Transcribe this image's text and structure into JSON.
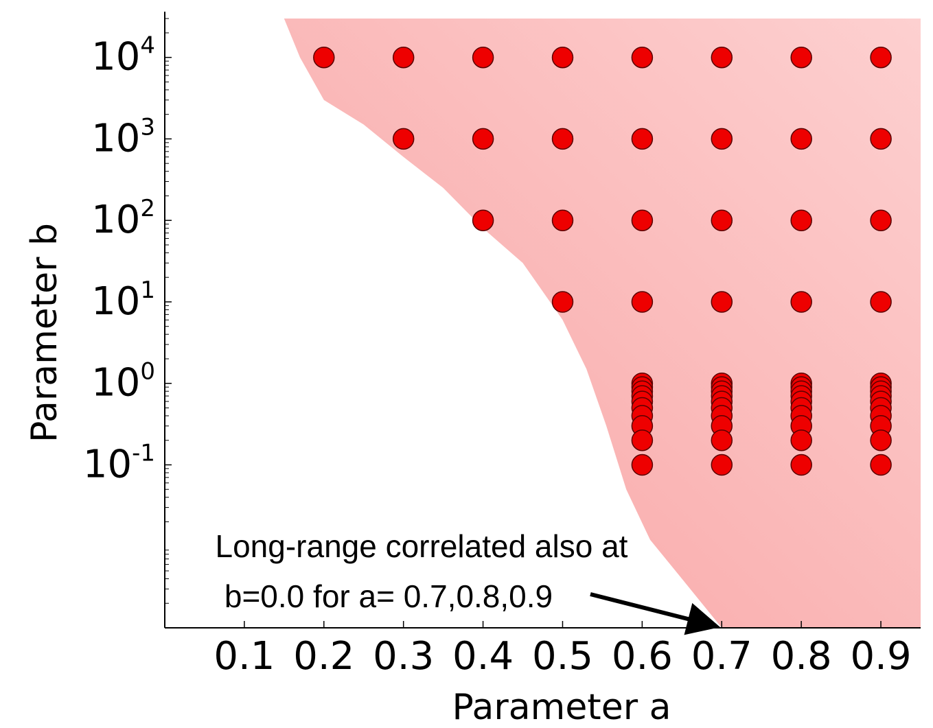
{
  "chart_data": {
    "type": "scatter",
    "xlabel": "Parameter a",
    "ylabel": "Parameter b",
    "x_scale": "linear",
    "y_scale": "log",
    "xlim": [
      0.0,
      0.95
    ],
    "ylim": [
      0.001,
      30000
    ],
    "x_ticks": [
      {
        "value": 0.1,
        "label": "0.1"
      },
      {
        "value": 0.2,
        "label": "0.2"
      },
      {
        "value": 0.3,
        "label": "0.3"
      },
      {
        "value": 0.4,
        "label": "0.4"
      },
      {
        "value": 0.5,
        "label": "0.5"
      },
      {
        "value": 0.6,
        "label": "0.6"
      },
      {
        "value": 0.7,
        "label": "0.7"
      },
      {
        "value": 0.8,
        "label": "0.8"
      },
      {
        "value": 0.9,
        "label": "0.9"
      }
    ],
    "y_ticks": [
      {
        "value": 10000,
        "base": "10",
        "exp": "4"
      },
      {
        "value": 1000,
        "base": "10",
        "exp": "3"
      },
      {
        "value": 100,
        "base": "10",
        "exp": "2"
      },
      {
        "value": 10,
        "base": "10",
        "exp": "1"
      },
      {
        "value": 1,
        "base": "10",
        "exp": "0"
      },
      {
        "value": 0.1,
        "base": "10",
        "exp": "-1"
      }
    ],
    "grid": false,
    "region": {
      "color": "#f8a3a3",
      "color_light": "#fdd0d0",
      "boundary": [
        {
          "a": 0.15,
          "b": 30000
        },
        {
          "a": 0.17,
          "b": 10000
        },
        {
          "a": 0.2,
          "b": 3000
        },
        {
          "a": 0.25,
          "b": 1500
        },
        {
          "a": 0.3,
          "b": 600
        },
        {
          "a": 0.35,
          "b": 250
        },
        {
          "a": 0.4,
          "b": 80
        },
        {
          "a": 0.45,
          "b": 30
        },
        {
          "a": 0.5,
          "b": 6
        },
        {
          "a": 0.53,
          "b": 1.5
        },
        {
          "a": 0.555,
          "b": 0.3
        },
        {
          "a": 0.58,
          "b": 0.05
        },
        {
          "a": 0.61,
          "b": 0.012
        },
        {
          "a": 0.65,
          "b": 0.004
        },
        {
          "a": 0.7,
          "b": 0.001
        }
      ]
    },
    "points": {
      "color": "#ee0000",
      "edge": "#5a0000",
      "b_by_a": [
        {
          "a": 0.2,
          "b": [
            10000
          ]
        },
        {
          "a": 0.3,
          "b": [
            10000,
            1000
          ]
        },
        {
          "a": 0.4,
          "b": [
            10000,
            1000,
            100
          ]
        },
        {
          "a": 0.5,
          "b": [
            10000,
            1000,
            100,
            10
          ]
        },
        {
          "a": 0.6,
          "b": [
            10000,
            1000,
            100,
            10,
            1.0,
            0.9,
            0.8,
            0.7,
            0.6,
            0.5,
            0.4,
            0.3,
            0.2,
            0.1
          ]
        },
        {
          "a": 0.7,
          "b": [
            10000,
            1000,
            100,
            10,
            1.0,
            0.9,
            0.8,
            0.7,
            0.6,
            0.5,
            0.4,
            0.3,
            0.2,
            0.1
          ]
        },
        {
          "a": 0.8,
          "b": [
            10000,
            1000,
            100,
            10,
            1.0,
            0.9,
            0.8,
            0.7,
            0.6,
            0.5,
            0.4,
            0.3,
            0.2,
            0.1
          ]
        },
        {
          "a": 0.9,
          "b": [
            10000,
            1000,
            100,
            10,
            1.0,
            0.9,
            0.8,
            0.7,
            0.6,
            0.5,
            0.4,
            0.3,
            0.2,
            0.1
          ]
        }
      ]
    },
    "annotation": {
      "lines": [
        "Long-range correlated also at",
        "b=0.0 for a= 0.7,0.8,0.9"
      ],
      "arrow_to": {
        "a": 0.7,
        "b": 0.001
      }
    }
  }
}
